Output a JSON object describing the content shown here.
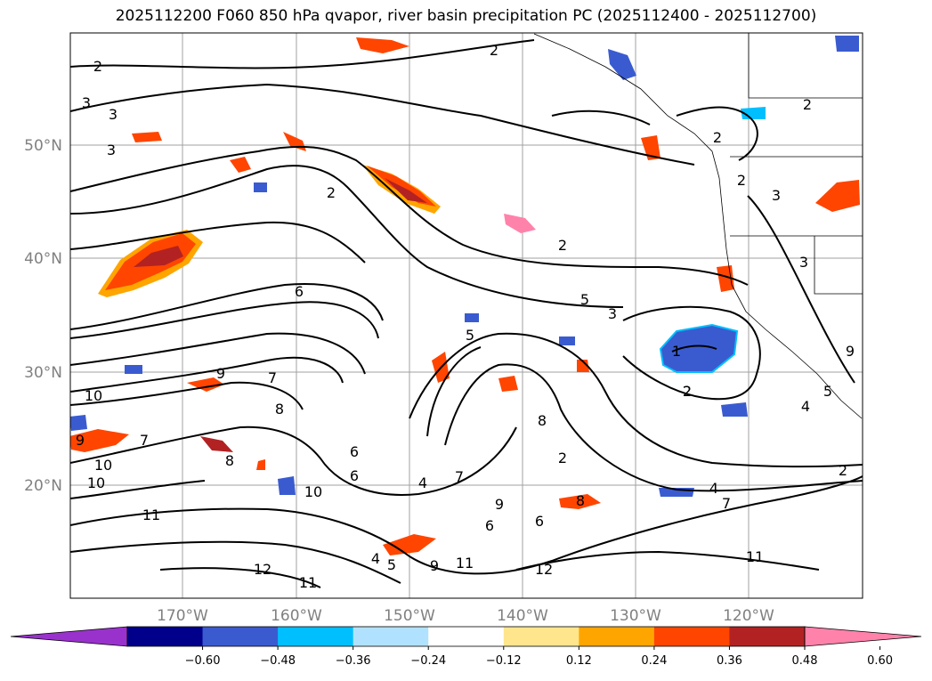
{
  "title": "2025112200 F060 850 hPa qvapor, river basin precipitation PC (2025112400 - 2025112700)",
  "map": {
    "lat_labels": [
      "50°N",
      "40°N",
      "30°N",
      "20°N"
    ],
    "lon_labels": [
      "170°W",
      "160°W",
      "150°W",
      "140°W",
      "130°W",
      "120°W"
    ],
    "contour_labels": [
      "2",
      "2",
      "3",
      "3",
      "3",
      "2",
      "2",
      "2",
      "2",
      "3",
      "2",
      "2",
      "6",
      "5",
      "3",
      "5",
      "1",
      "2",
      "9",
      "7",
      "8",
      "10",
      "9",
      "7",
      "8",
      "10",
      "10",
      "6",
      "4",
      "6",
      "9",
      "6",
      "7",
      "8",
      "8",
      "6",
      "4",
      "7",
      "2",
      "11",
      "10",
      "12",
      "11",
      "4",
      "5",
      "9",
      "11",
      "12",
      "11",
      "3",
      "9",
      "5",
      "4",
      "2"
    ]
  },
  "colorbar": {
    "colors": [
      "#9932cc",
      "#00008b",
      "#3a5bd0",
      "#00bfff",
      "#b0e2ff",
      "#ffffff",
      "#ffe68c",
      "#ffa500",
      "#ff4500",
      "#b22222",
      "#ff82ab"
    ],
    "tick_labels": [
      "−0.60",
      "−0.48",
      "−0.36",
      "−0.24",
      "−0.12",
      "0.12",
      "0.24",
      "0.36",
      "0.48",
      "0.60"
    ]
  },
  "colors": {
    "gridline": "#a0a0a0",
    "axis_label": "#808080",
    "contour": "#000000"
  }
}
